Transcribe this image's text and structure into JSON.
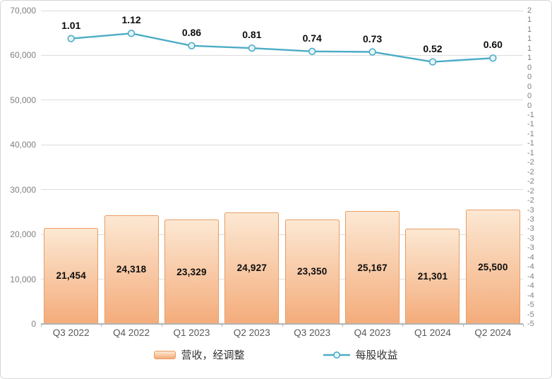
{
  "chart_data": {
    "type": "combo-bar-line",
    "categories": [
      "Q3 2022",
      "Q4 2022",
      "Q1 2023",
      "Q2 2023",
      "Q3 2023",
      "Q4 2023",
      "Q1 2024",
      "Q2 2024"
    ],
    "series": [
      {
        "name": "营收，经调整",
        "type": "bar",
        "axis": "left",
        "values": [
          21454,
          24318,
          23329,
          24927,
          23350,
          25167,
          21301,
          25500
        ],
        "labels": [
          "21,454",
          "24,318",
          "23,329",
          "24,927",
          "23,350",
          "25,167",
          "21,301",
          "25,500"
        ],
        "fill_top": "#fce8d3",
        "fill_bottom": "#f4ac7b",
        "border_color": "#e89c63"
      },
      {
        "name": "每股收益",
        "type": "line",
        "axis": "right",
        "values": [
          1.01,
          1.12,
          0.86,
          0.81,
          0.74,
          0.73,
          0.52,
          0.6
        ],
        "labels": [
          "1.01",
          "1.12",
          "0.86",
          "0.81",
          "0.74",
          "0.73",
          "0.52",
          "0.60"
        ],
        "line_color": "#4bacc6",
        "marker_fill": "#e6f4f9"
      }
    ],
    "left_axis": {
      "min": 0,
      "max": 70000,
      "step": 10000,
      "tick_labels": [
        "70,000",
        "60,000",
        "50,000",
        "40,000",
        "30,000",
        "20,000",
        "10,000",
        "0"
      ]
    },
    "right_axis": {
      "top_value": 1.6,
      "bottom_value": -5.0,
      "step": 0.2,
      "tick_labels": [
        "2",
        "1",
        "1",
        "1",
        "1",
        "1",
        "0",
        "0",
        "0",
        "0",
        "0",
        "-1",
        "-1",
        "-1",
        "-1",
        "-1",
        "-2",
        "-2",
        "-2",
        "-2",
        "-2",
        "-3",
        "-3",
        "-3",
        "-3",
        "-3",
        "-4",
        "-4",
        "-4",
        "-4",
        "-4",
        "-5",
        "-5",
        "-5"
      ]
    },
    "grid": true,
    "legend_position": "bottom"
  }
}
